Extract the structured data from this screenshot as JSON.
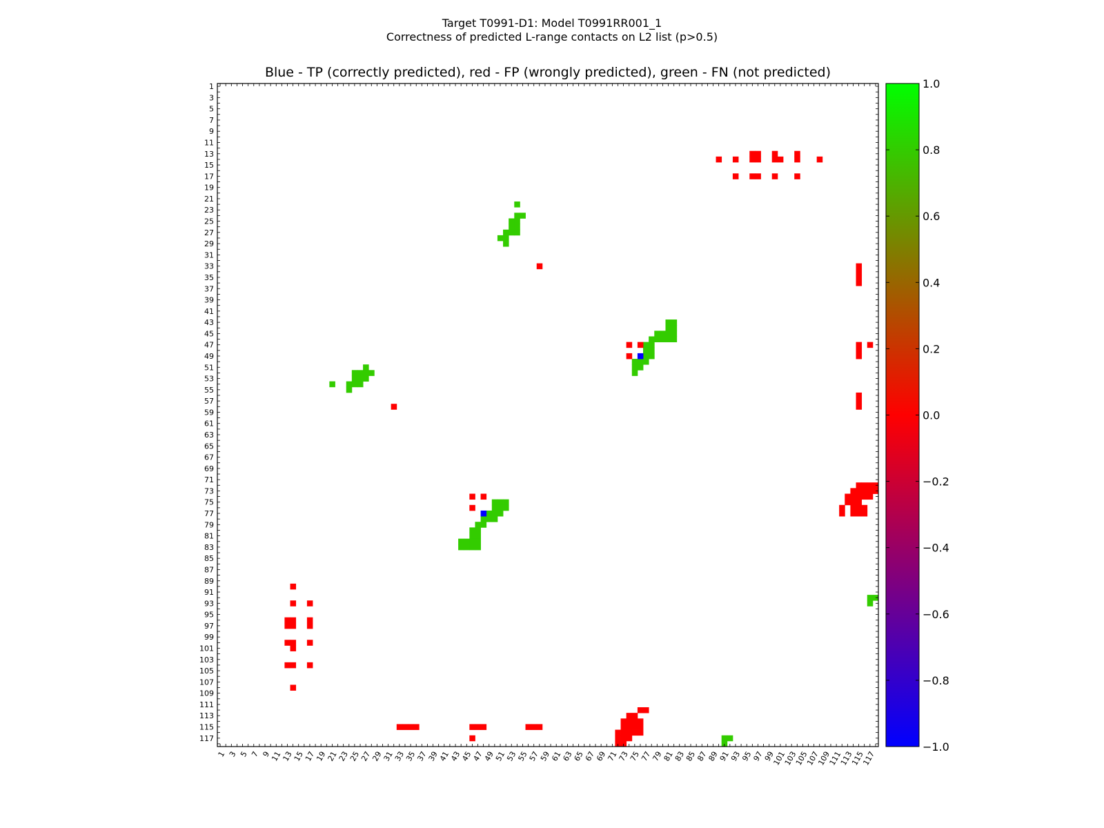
{
  "title": "Target T0991-D1: Model T0991RR001_1",
  "subtitle": "Correctness of predicted L-range contacts on L2 list (p>0.5)",
  "chart_data": {
    "type": "heatmap",
    "title": "Blue - TP (correctly predicted), red - FP (wrongly predicted), green - FN (not predicted)",
    "xlabel": "",
    "ylabel": "",
    "grid": false,
    "n": 118,
    "xlim": [
      1,
      118
    ],
    "ylim": [
      1,
      118
    ],
    "x_ticks": [
      1,
      3,
      5,
      7,
      9,
      11,
      13,
      15,
      17,
      19,
      21,
      23,
      25,
      27,
      29,
      31,
      33,
      35,
      37,
      39,
      41,
      43,
      45,
      47,
      49,
      51,
      53,
      55,
      57,
      59,
      61,
      63,
      65,
      67,
      69,
      71,
      73,
      75,
      77,
      79,
      81,
      83,
      85,
      87,
      89,
      91,
      93,
      95,
      97,
      99,
      101,
      103,
      105,
      107,
      109,
      111,
      113,
      115,
      117
    ],
    "y_ticks": [
      1,
      3,
      5,
      7,
      9,
      11,
      13,
      15,
      17,
      19,
      21,
      23,
      25,
      27,
      29,
      31,
      33,
      35,
      37,
      39,
      41,
      43,
      45,
      47,
      49,
      51,
      53,
      55,
      57,
      59,
      61,
      63,
      65,
      67,
      69,
      71,
      73,
      75,
      77,
      79,
      81,
      83,
      85,
      87,
      89,
      91,
      93,
      95,
      97,
      99,
      101,
      103,
      105,
      107,
      109,
      111,
      113,
      115,
      117
    ],
    "colorbar": {
      "min": -1.0,
      "max": 1.0,
      "ticks": [
        "1.0",
        "0.8",
        "0.6",
        "0.4",
        "0.2",
        "0.0",
        "−0.2",
        "−0.4",
        "−0.6",
        "−0.8",
        "−1.0"
      ],
      "stops": [
        "#0000ff",
        "#7f007f",
        "#ff0000",
        "#7f7f00",
        "#00ff00"
      ]
    },
    "colors": {
      "TP": "#0000ff",
      "FP": "#ff0000",
      "FN": "#33cc00"
    },
    "categories": [
      {
        "name": "TP",
        "value": -1.0
      },
      {
        "name": "FP",
        "value": 0.0
      },
      {
        "name": "FN",
        "value": 0.8
      }
    ],
    "cells": {
      "TP": [
        [
          76,
          49
        ],
        [
          48,
          77
        ]
      ],
      "FN": [
        [
          54,
          22
        ],
        [
          54,
          24
        ],
        [
          55,
          24
        ],
        [
          53,
          25
        ],
        [
          54,
          25
        ],
        [
          53,
          26
        ],
        [
          54,
          26
        ],
        [
          52,
          27
        ],
        [
          53,
          27
        ],
        [
          54,
          27
        ],
        [
          51,
          28
        ],
        [
          52,
          28
        ],
        [
          52,
          29
        ],
        [
          81,
          43
        ],
        [
          82,
          43
        ],
        [
          81,
          44
        ],
        [
          82,
          44
        ],
        [
          79,
          45
        ],
        [
          80,
          45
        ],
        [
          81,
          45
        ],
        [
          82,
          45
        ],
        [
          78,
          46
        ],
        [
          79,
          46
        ],
        [
          80,
          46
        ],
        [
          81,
          46
        ],
        [
          82,
          46
        ],
        [
          77,
          47
        ],
        [
          78,
          47
        ],
        [
          77,
          48
        ],
        [
          78,
          48
        ],
        [
          77,
          49
        ],
        [
          78,
          49
        ],
        [
          75,
          50
        ],
        [
          76,
          50
        ],
        [
          77,
          50
        ],
        [
          75,
          51
        ],
        [
          76,
          51
        ],
        [
          75,
          52
        ],
        [
          27,
          51
        ],
        [
          25,
          52
        ],
        [
          26,
          52
        ],
        [
          27,
          52
        ],
        [
          28,
          52
        ],
        [
          25,
          53
        ],
        [
          26,
          53
        ],
        [
          27,
          53
        ],
        [
          21,
          54
        ],
        [
          24,
          54
        ],
        [
          25,
          54
        ],
        [
          26,
          54
        ],
        [
          24,
          55
        ],
        [
          50,
          75
        ],
        [
          51,
          75
        ],
        [
          52,
          75
        ],
        [
          50,
          76
        ],
        [
          51,
          76
        ],
        [
          52,
          76
        ],
        [
          49,
          77
        ],
        [
          50,
          77
        ],
        [
          51,
          77
        ],
        [
          48,
          78
        ],
        [
          49,
          78
        ],
        [
          50,
          78
        ],
        [
          47,
          79
        ],
        [
          48,
          79
        ],
        [
          46,
          80
        ],
        [
          47,
          80
        ],
        [
          46,
          81
        ],
        [
          47,
          81
        ],
        [
          44,
          82
        ],
        [
          45,
          82
        ],
        [
          46,
          82
        ],
        [
          47,
          82
        ],
        [
          44,
          83
        ],
        [
          45,
          83
        ],
        [
          46,
          83
        ],
        [
          47,
          83
        ],
        [
          117,
          92
        ],
        [
          118,
          92
        ],
        [
          117,
          93
        ],
        [
          91,
          117
        ],
        [
          92,
          117
        ],
        [
          91,
          118
        ]
      ],
      "FP": [
        [
          90,
          14
        ],
        [
          93,
          14
        ],
        [
          96,
          13
        ],
        [
          97,
          13
        ],
        [
          96,
          14
        ],
        [
          97,
          14
        ],
        [
          100,
          13
        ],
        [
          100,
          14
        ],
        [
          101,
          14
        ],
        [
          104,
          13
        ],
        [
          104,
          14
        ],
        [
          108,
          14
        ],
        [
          93,
          17
        ],
        [
          96,
          17
        ],
        [
          97,
          17
        ],
        [
          100,
          17
        ],
        [
          104,
          17
        ],
        [
          58,
          33
        ],
        [
          115,
          33
        ],
        [
          115,
          34
        ],
        [
          115,
          35
        ],
        [
          115,
          36
        ],
        [
          74,
          47
        ],
        [
          76,
          47
        ],
        [
          74,
          49
        ],
        [
          115,
          47
        ],
        [
          115,
          48
        ],
        [
          115,
          49
        ],
        [
          117,
          47
        ],
        [
          32,
          58
        ],
        [
          115,
          56
        ],
        [
          115,
          57
        ],
        [
          115,
          58
        ],
        [
          115,
          72
        ],
        [
          116,
          72
        ],
        [
          117,
          72
        ],
        [
          118,
          72
        ],
        [
          114,
          73
        ],
        [
          115,
          73
        ],
        [
          116,
          73
        ],
        [
          117,
          73
        ],
        [
          118,
          73
        ],
        [
          113,
          74
        ],
        [
          114,
          74
        ],
        [
          115,
          74
        ],
        [
          116,
          74
        ],
        [
          117,
          74
        ],
        [
          113,
          75
        ],
        [
          114,
          75
        ],
        [
          115,
          75
        ],
        [
          112,
          76
        ],
        [
          114,
          76
        ],
        [
          115,
          76
        ],
        [
          116,
          76
        ],
        [
          112,
          77
        ],
        [
          114,
          77
        ],
        [
          115,
          77
        ],
        [
          116,
          77
        ],
        [
          46,
          74
        ],
        [
          48,
          74
        ],
        [
          46,
          76
        ],
        [
          14,
          90
        ],
        [
          14,
          93
        ],
        [
          17,
          93
        ],
        [
          13,
          96
        ],
        [
          14,
          96
        ],
        [
          17,
          96
        ],
        [
          13,
          97
        ],
        [
          14,
          97
        ],
        [
          17,
          97
        ],
        [
          13,
          100
        ],
        [
          14,
          100
        ],
        [
          17,
          100
        ],
        [
          14,
          101
        ],
        [
          13,
          104
        ],
        [
          14,
          104
        ],
        [
          17,
          104
        ],
        [
          14,
          108
        ],
        [
          76,
          112
        ],
        [
          77,
          112
        ],
        [
          74,
          113
        ],
        [
          75,
          113
        ],
        [
          73,
          114
        ],
        [
          74,
          114
        ],
        [
          75,
          114
        ],
        [
          76,
          114
        ],
        [
          33,
          115
        ],
        [
          34,
          115
        ],
        [
          35,
          115
        ],
        [
          36,
          115
        ],
        [
          46,
          115
        ],
        [
          47,
          115
        ],
        [
          48,
          115
        ],
        [
          56,
          115
        ],
        [
          57,
          115
        ],
        [
          58,
          115
        ],
        [
          73,
          115
        ],
        [
          74,
          115
        ],
        [
          75,
          115
        ],
        [
          76,
          115
        ],
        [
          72,
          116
        ],
        [
          73,
          116
        ],
        [
          74,
          116
        ],
        [
          75,
          116
        ],
        [
          76,
          116
        ],
        [
          46,
          117
        ],
        [
          72,
          117
        ],
        [
          73,
          117
        ],
        [
          74,
          117
        ],
        [
          72,
          118
        ],
        [
          73,
          118
        ]
      ]
    }
  }
}
